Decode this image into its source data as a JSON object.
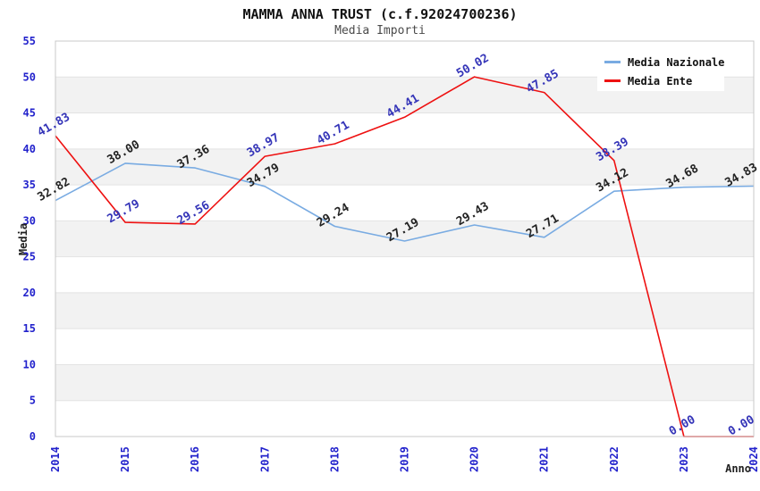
{
  "header": {
    "title": "MAMMA ANNA TRUST (c.f.92024700236)",
    "subtitle": "Media Importi"
  },
  "legend": {
    "items": [
      {
        "label": "Media Nazionale",
        "color": "#79ABE2"
      },
      {
        "label": "Media Ente",
        "color": "#EE1111"
      }
    ]
  },
  "chart_data": {
    "type": "line",
    "x": [
      "2014",
      "2015",
      "2016",
      "2017",
      "2018",
      "2019",
      "2020",
      "2021",
      "2022",
      "2023",
      "2024"
    ],
    "series": [
      {
        "name": "Media Nazionale",
        "color": "#79ABE2",
        "label_color": "#222222",
        "values": [
          32.82,
          38.0,
          37.36,
          34.79,
          29.24,
          27.19,
          29.43,
          27.71,
          34.12,
          34.68,
          34.83
        ]
      },
      {
        "name": "Media Ente",
        "color": "#EE1111",
        "label_color": "#3434B8",
        "values": [
          41.83,
          29.79,
          29.56,
          38.97,
          40.71,
          44.41,
          50.02,
          47.85,
          38.39,
          0.0,
          0.0
        ]
      }
    ],
    "title": "MAMMA ANNA TRUST (c.f.92024700236)",
    "subtitle": "Media Importi",
    "xlabel": "Anno",
    "ylabel": "Media",
    "ylim": [
      0,
      55
    ],
    "ytick_step": 5,
    "yticks": [
      0,
      5,
      10,
      15,
      20,
      25,
      30,
      35,
      40,
      45,
      50,
      55
    ],
    "grid": "alternating-horizontal-bands",
    "band_color": "#F2F2F2",
    "gridline_color": "#E3E3E3",
    "border_color": "#C8C8C8",
    "tick_label_color": "#2222CC",
    "legend_position": "top-right",
    "value_labels": "all-points-two-decimals"
  }
}
